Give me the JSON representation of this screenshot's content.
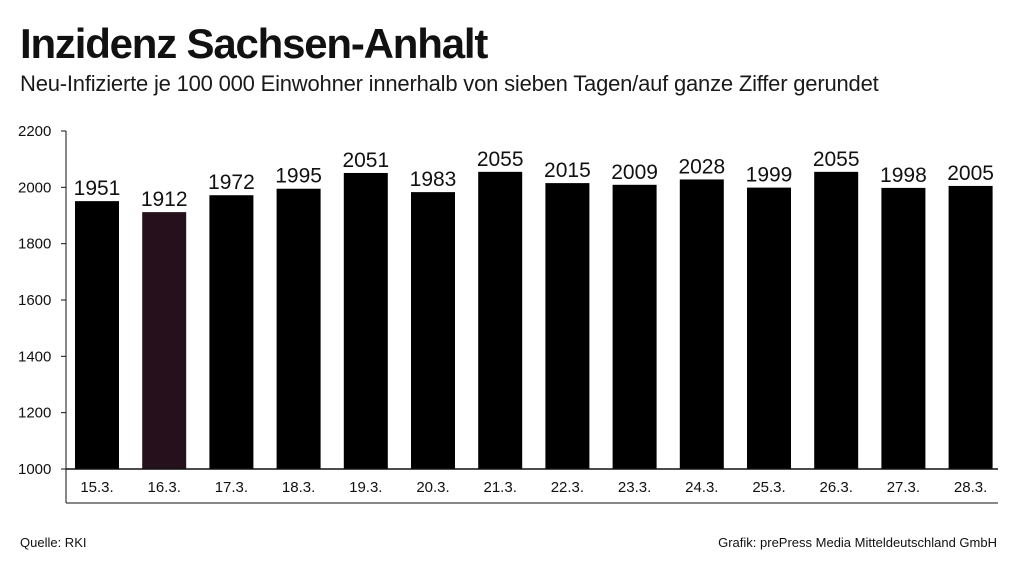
{
  "title": "Inzidenz Sachsen-Anhalt",
  "subtitle": "Neu-Infizierte je 100 000 Einwohner innerhalb von sieben Tagen/auf ganze Ziffer gerundet",
  "source": "Quelle: RKI",
  "credit": "Grafik: prePress Media Mitteldeutschland GmbH",
  "chart_data": {
    "type": "bar",
    "title": "Inzidenz Sachsen-Anhalt",
    "subtitle": "Neu-Infizierte je 100 000 Einwohner innerhalb von sieben Tagen/auf ganze Ziffer gerundet",
    "xlabel": "",
    "ylabel": "",
    "categories": [
      "15.3.",
      "16.3.",
      "17.3.",
      "18.3.",
      "19.3.",
      "20.3.",
      "21.3.",
      "22.3.",
      "23.3.",
      "24.3.",
      "25.3.",
      "26.3.",
      "27.3.",
      "28.3."
    ],
    "values": [
      1951,
      1912,
      1972,
      1995,
      2051,
      1983,
      2055,
      2015,
      2009,
      2028,
      1999,
      2055,
      1998,
      2005
    ],
    "data_labels": [
      "1951",
      "1912",
      "1972",
      "1995",
      "2051",
      "1983",
      "2055",
      "2015",
      "2009",
      "2028",
      "1999",
      "2055",
      "1998",
      "2005"
    ],
    "ylim": [
      1000,
      2200
    ],
    "yticks": [
      1000,
      1200,
      1400,
      1600,
      1800,
      2000,
      2200
    ],
    "ytick_labels": [
      "1000",
      "1200",
      "1400",
      "1600",
      "1800",
      "2000",
      "2200"
    ],
    "grid": false,
    "legend": "none",
    "bar_color": "#000000",
    "highlight_index": 1,
    "highlight_color": "#25101c"
  }
}
